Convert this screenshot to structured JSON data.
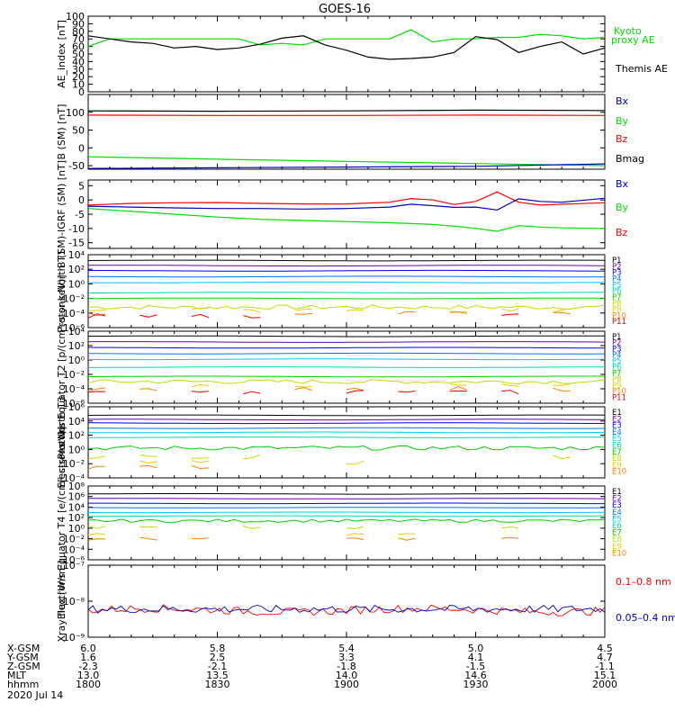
{
  "title": "GOES-16",
  "colors": {
    "black": "#000000",
    "red": "#ff0000",
    "green": "#00dd00",
    "blue": "#0000c0",
    "p_series": [
      "#000000",
      "#6a00a8",
      "#0000ff",
      "#0070ff",
      "#00c8ff",
      "#00d8a8",
      "#00d000",
      "#b8e000",
      "#e8d000",
      "#ff8000",
      "#e80000",
      "#a00000"
    ],
    "e_series": [
      "#000000",
      "#6a00a8",
      "#0000ff",
      "#0070ff",
      "#00c8ff",
      "#00d8a8",
      "#00d000",
      "#b8e000",
      "#e8d000",
      "#ff8000",
      "#a00000"
    ]
  },
  "chart_data": [
    {
      "type": "line",
      "id": "ae",
      "ylabel": "AE_index [nT]",
      "ylim": [
        0,
        100
      ],
      "yticks": [
        "0",
        "10",
        "20",
        "30",
        "40",
        "50",
        "60",
        "70",
        "80",
        "90",
        "100"
      ],
      "legend": [
        {
          "text": "Kyoto",
          "color": "green"
        },
        {
          "text": "proxy AE",
          "color": "green"
        },
        {
          "text": "Themis AE",
          "color": "black"
        }
      ],
      "x": [
        1800,
        1805,
        1810,
        1815,
        1820,
        1825,
        1830,
        1835,
        1840,
        1845,
        1850,
        1855,
        1900,
        1905,
        1910,
        1915,
        1920,
        1925,
        1930,
        1935,
        1940,
        1945,
        1950,
        1955,
        2000
      ],
      "series": [
        {
          "name": "Kyoto proxy AE",
          "color": "green",
          "values": [
            60,
            70,
            70,
            70,
            70,
            70,
            70,
            70,
            62,
            64,
            62,
            70,
            70,
            70,
            70,
            82,
            66,
            70,
            70,
            72,
            72,
            76,
            74,
            70,
            72
          ]
        },
        {
          "name": "Themis AE",
          "color": "black",
          "values": [
            74,
            70,
            66,
            64,
            58,
            60,
            56,
            58,
            63,
            71,
            74,
            62,
            55,
            46,
            43,
            44,
            46,
            52,
            73,
            69,
            52,
            60,
            66,
            50,
            58
          ]
        }
      ]
    },
    {
      "type": "line",
      "id": "bsm",
      "ylabel": "B (SM) [nT]",
      "ylim": [
        -60,
        150
      ],
      "yticks": [
        "-50",
        "0",
        "50",
        "100"
      ],
      "ytick_values": [
        -50,
        0,
        50,
        100
      ],
      "legend": [
        {
          "text": "Bx",
          "color": "blue"
        },
        {
          "text": "By",
          "color": "green"
        },
        {
          "text": "Bz",
          "color": "red"
        },
        {
          "text": "Bmag",
          "color": "black"
        }
      ],
      "x": [
        1800,
        1830,
        1900,
        1930,
        2000
      ],
      "series": [
        {
          "name": "Bmag",
          "color": "black",
          "values": [
            104,
            103,
            104,
            106,
            105
          ]
        },
        {
          "name": "Bz",
          "color": "red",
          "values": [
            92,
            91,
            91,
            92,
            91
          ]
        },
        {
          "name": "By",
          "color": "green",
          "values": [
            -25,
            -32,
            -38,
            -44,
            -50
          ]
        },
        {
          "name": "Bx",
          "color": "blue",
          "values": [
            -58,
            -56,
            -54,
            -52,
            -45
          ]
        }
      ]
    },
    {
      "type": "line",
      "id": "bigrf",
      "ylabel": "B (SM)-IGRF (SM) [nT]",
      "ylim": [
        -17,
        7
      ],
      "yticks": [
        "-15",
        "-10",
        "-5",
        "0",
        "5"
      ],
      "ytick_values": [
        -15,
        -10,
        -5,
        0,
        5
      ],
      "legend": [
        {
          "text": "Bx",
          "color": "blue"
        },
        {
          "text": "By",
          "color": "green"
        },
        {
          "text": "Bz",
          "color": "red"
        }
      ],
      "x": [
        1800,
        1810,
        1820,
        1830,
        1840,
        1850,
        1900,
        1910,
        1915,
        1920,
        1925,
        1930,
        1935,
        1940,
        1945,
        1950,
        2000
      ],
      "series": [
        {
          "name": "Bz",
          "color": "red",
          "values": [
            -1.8,
            -1.2,
            -1.0,
            -0.9,
            -1.2,
            -1.4,
            -1.4,
            -0.8,
            0.5,
            0.0,
            -1.6,
            -0.5,
            2.8,
            -0.8,
            -1.8,
            -1.5,
            -1.0
          ]
        },
        {
          "name": "Bx",
          "color": "blue",
          "values": [
            -2.2,
            -2.5,
            -2.8,
            -3.0,
            -3.0,
            -3.2,
            -3.0,
            -2.5,
            -1.5,
            -2.0,
            -2.6,
            -2.5,
            -3.5,
            0.4,
            -0.5,
            -0.8,
            0.6
          ]
        },
        {
          "name": "By",
          "color": "green",
          "values": [
            -3.0,
            -4.0,
            -5.0,
            -6.0,
            -6.8,
            -7.2,
            -7.6,
            -8.0,
            -8.3,
            -8.6,
            -9.2,
            -10.0,
            -11.0,
            -9.0,
            -9.5,
            -9.8,
            -10.0
          ]
        }
      ]
    },
    {
      "type": "line",
      "id": "pnorth",
      "ylabel": "Protons North T1",
      "log": true,
      "ylim_exp": [
        -6,
        4
      ],
      "yticks": [
        "10⁴",
        "10²",
        "10⁰",
        "10⁻²",
        "10⁻⁴",
        "10⁻⁶"
      ],
      "ytick_exp": [
        4,
        2,
        0,
        -2,
        -4,
        -6
      ],
      "labels": [
        "P1",
        "P2",
        "P3",
        "P4",
        "P5",
        "P6",
        "P7",
        "P8",
        "P9",
        "P10",
        "P11"
      ],
      "levels_exp": [
        3.2,
        2.5,
        1.8,
        1.0,
        0.2,
        -1.2,
        -2.0,
        -3.2,
        -3.6,
        -4.1,
        -4.4
      ]
    },
    {
      "type": "line",
      "id": "peq",
      "ylabel": "Protons Equator T2 [p/(cm²-s-sr-keV)]",
      "log": true,
      "ylim_exp": [
        -6,
        4
      ],
      "yticks": [
        "10⁴",
        "10²",
        "10⁰",
        "10⁻²",
        "10⁻⁴",
        "10⁻⁶"
      ],
      "ytick_exp": [
        4,
        2,
        0,
        -2,
        -4,
        -6
      ],
      "labels": [
        "P1",
        "P2",
        "P3",
        "P4",
        "P5",
        "P6",
        "P7",
        "P8",
        "P9",
        "P10",
        "P11"
      ],
      "levels_exp": [
        3.3,
        2.5,
        1.7,
        0.9,
        0.1,
        -1.0,
        -2.3,
        -3.0,
        -3.5,
        -4.0,
        -4.5
      ]
    },
    {
      "type": "line",
      "id": "enorth",
      "ylabel": "Electrons North T3",
      "log": true,
      "ylim_exp": [
        -4,
        6
      ],
      "yticks": [
        "10⁶",
        "10⁴",
        "10²",
        "10⁰",
        "10⁻²",
        "10⁻⁴"
      ],
      "ytick_exp": [
        6,
        4,
        2,
        0,
        -2,
        -4
      ],
      "labels": [
        "E1",
        "E2",
        "E3",
        "E4",
        "E5",
        "E6",
        "E7",
        "E8",
        "E9",
        "E10"
      ],
      "levels_exp": [
        4.8,
        4.2,
        3.7,
        3.0,
        2.4,
        1.7,
        0.2,
        -1.0,
        -1.8,
        -2.5
      ]
    },
    {
      "type": "line",
      "id": "eeq",
      "ylabel": "Electrons Equator T4 [e/(cm²-s-sr-keV)]",
      "log": true,
      "ylim_exp": [
        -6,
        8
      ],
      "yticks": [
        "10⁸",
        "10⁶",
        "10⁴",
        "10²",
        "10⁰",
        "10⁻²",
        "10⁻⁴",
        "10⁻⁶"
      ],
      "ytick_exp": [
        8,
        6,
        4,
        2,
        0,
        -2,
        -4,
        -6
      ],
      "labels": [
        "E1",
        "E2",
        "E3",
        "E4",
        "E5",
        "E6",
        "E7",
        "E8",
        "E9",
        "E10"
      ],
      "levels_exp": [
        6.5,
        5.6,
        4.7,
        3.9,
        3.0,
        2.3,
        1.4,
        0.2,
        -1.2,
        -2.0
      ]
    },
    {
      "type": "line",
      "id": "xray",
      "ylabel": "Xray flux [W/m²]",
      "log": true,
      "ylim_exp": [
        -9,
        -7
      ],
      "yticks": [
        "10⁻⁷",
        "10⁻⁸",
        "10⁻⁹"
      ],
      "ytick_exp": [
        -7,
        -8,
        -9
      ],
      "legend": [
        {
          "text": "0.1–0.8 nm",
          "color": "red"
        },
        {
          "text": "0.05–0.4 nm",
          "color": "blue"
        }
      ],
      "series": [
        {
          "name": "0.1-0.8 nm",
          "color": "red",
          "base_exp": -8.25
        },
        {
          "name": "0.05-0.4 nm",
          "color": "blue",
          "base_exp": -8.22
        }
      ]
    }
  ],
  "xaxis": {
    "row_labels": [
      "X-GSM",
      "Y-GSM",
      "Z-GSM",
      "MLT",
      "hhmm"
    ],
    "date": "2020 Jul 14",
    "columns": [
      [
        "6.0",
        "1.6",
        "-2.3",
        "13.0",
        "1800"
      ],
      [
        "5.8",
        "2.5",
        "-2.1",
        "13.5",
        "1830"
      ],
      [
        "5.4",
        "3.3",
        "-1.8",
        "14.0",
        "1900"
      ],
      [
        "5.0",
        "4.1",
        "-1.5",
        "14.6",
        "1930"
      ],
      [
        "4.5",
        "4.7",
        "-1.1",
        "15.1",
        "2000"
      ]
    ]
  }
}
